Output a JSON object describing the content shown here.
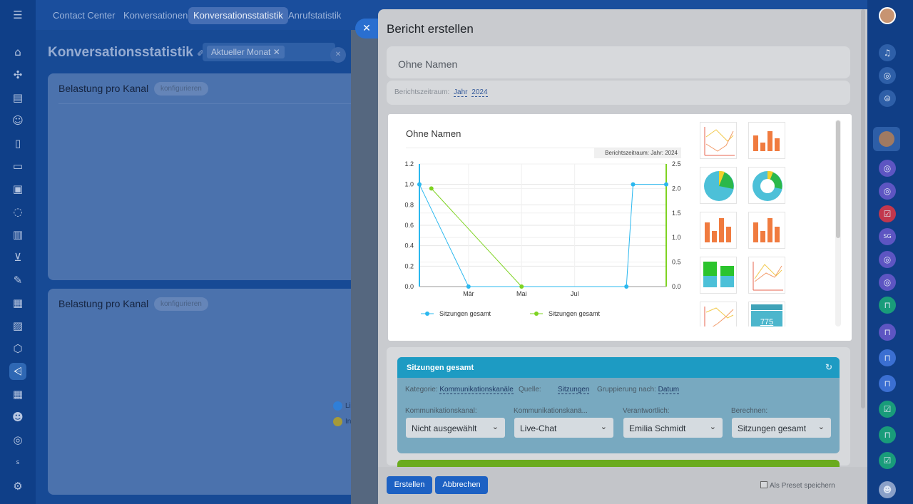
{
  "nav": {
    "items": [
      "Contact Center",
      "Konversationen",
      "Konversationsstatistik",
      "Anrufstatistik"
    ],
    "active": "Konversationsstatistik"
  },
  "background": {
    "page_title": "Konversationsstatistik",
    "filter_tag": "Aktueller Monat",
    "cards": [
      {
        "title": "Belastung pro Kanal",
        "configure": "konfigurieren"
      },
      {
        "title": "Belastung pro Kanal",
        "configure": "konfigurieren"
      }
    ],
    "legend_fragments": [
      "Li",
      "In"
    ]
  },
  "panel": {
    "title": "Bericht erstellen",
    "name_value": "Ohne Namen",
    "period_label": "Berichtszeitraum:",
    "period_unit": "Jahr",
    "period_year": "2024",
    "preview_title": "Ohne Namen",
    "preview_badge": "Berichtszeitraum: Jahr: 2024",
    "thumb_number": "775"
  },
  "chart_data": {
    "type": "line",
    "title": "Ohne Namen",
    "x_tick_labels": [
      "Mär",
      "Mai",
      "Jul"
    ],
    "y_left_ticks": [
      "0.0",
      "0.2",
      "0.4",
      "0.6",
      "0.8",
      "1.0",
      "1.2"
    ],
    "y_right_ticks": [
      "0.0",
      "0.5",
      "1.0",
      "1.5",
      "2.0",
      "2.5"
    ],
    "ylim_left": [
      0,
      1.2
    ],
    "ylim_right": [
      0,
      2.5
    ],
    "series": [
      {
        "name": "Sitzungen gesamt",
        "color": "#2bb8ef",
        "axis": "left",
        "points": [
          {
            "x": "Jan",
            "y": 1.0
          },
          {
            "x": "Mär",
            "y": 0.0
          },
          {
            "x": "Sep",
            "y": 0.0
          },
          {
            "x": "Sep (spät)",
            "y": 1.0
          },
          {
            "x": "Dez",
            "y": 1.0
          }
        ]
      },
      {
        "name": "Sitzungen gesamt",
        "color": "#7ed321",
        "axis": "right",
        "points": [
          {
            "x": "Feb",
            "y": 2.0
          },
          {
            "x": "Mai",
            "y": 0.0
          }
        ]
      }
    ]
  },
  "widget": {
    "header": "Sitzungen gesamt",
    "category_label": "Kategorie:",
    "category_value": "Kommunikationskanäle",
    "source_label": "Quelle:",
    "source_value": "Sitzungen",
    "grouping_label": "Gruppierung nach:",
    "grouping_value": "Datum",
    "fields": [
      {
        "label": "Kommunikationskanal:",
        "value": "Nicht ausgewählt"
      },
      {
        "label": "Kommunikationskanä...",
        "value": "Live-Chat"
      },
      {
        "label": "Verantwortlich:",
        "value": "Emilia Schmidt"
      },
      {
        "label": "Berechnen:",
        "value": "Sitzungen gesamt"
      }
    ]
  },
  "footer": {
    "create_label": "Erstellen",
    "cancel_label": "Abbrechen",
    "preset_label": "Als Preset speichern"
  },
  "colors": {
    "accent": "#1d61c3",
    "widget_header": "#1d9bc3",
    "series_blue": "#2bb8ef",
    "series_green": "#7ed321"
  }
}
